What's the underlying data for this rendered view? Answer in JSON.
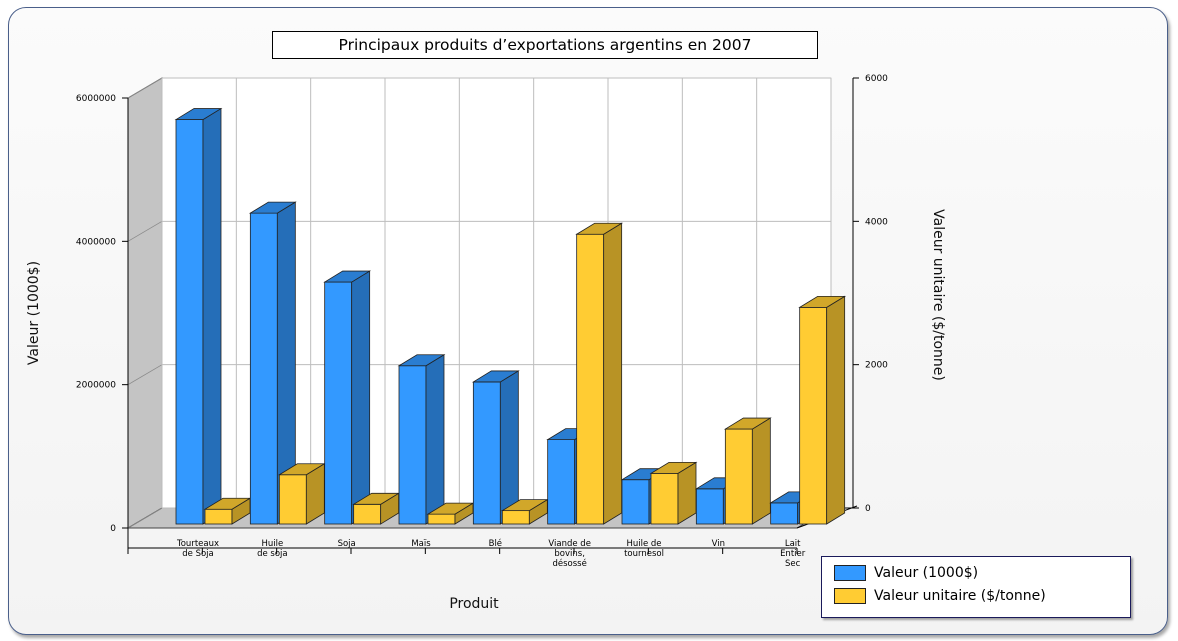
{
  "chart_data": {
    "type": "bar",
    "title": "Principaux produits d’exportations argentins en 2007",
    "xlabel": "Produit",
    "ylabel": "Valeur (1000$)",
    "y2label": "Valeur unitaire ($/tonne)",
    "categories": [
      [
        "Tourteaux",
        "de Soja"
      ],
      [
        "Huile",
        "de soja"
      ],
      [
        "Soja"
      ],
      [
        "Maïs"
      ],
      [
        "Blé"
      ],
      [
        "Viande de",
        "bovins,",
        "désossé"
      ],
      [
        "Huile de",
        "tournesol"
      ],
      [
        "Vin"
      ],
      [
        "Lait",
        "Entier",
        "Sec"
      ]
    ],
    "series": [
      {
        "name": "Valeur (1000$)",
        "axis": "left",
        "color": "#3399ff",
        "values": [
          5750000,
          4420000,
          3440000,
          2250000,
          2020000,
          1200000,
          630000,
          500000,
          300000
        ]
      },
      {
        "name": "Valeur unitaire ($/tonne)",
        "axis": "right",
        "color": "#ffcc33",
        "values": [
          210,
          700,
          280,
          140,
          190,
          4120,
          720,
          1350,
          3080
        ]
      }
    ],
    "ylim": [
      0,
      6000000
    ],
    "y_ticks": [
      "0",
      "2000000",
      "4000000",
      "6000000"
    ],
    "y2lim": [
      0,
      6000
    ],
    "y2_ticks": [
      "0",
      "2000",
      "4000",
      "6000"
    ],
    "grid": true,
    "legend_position": "bottom-right"
  }
}
